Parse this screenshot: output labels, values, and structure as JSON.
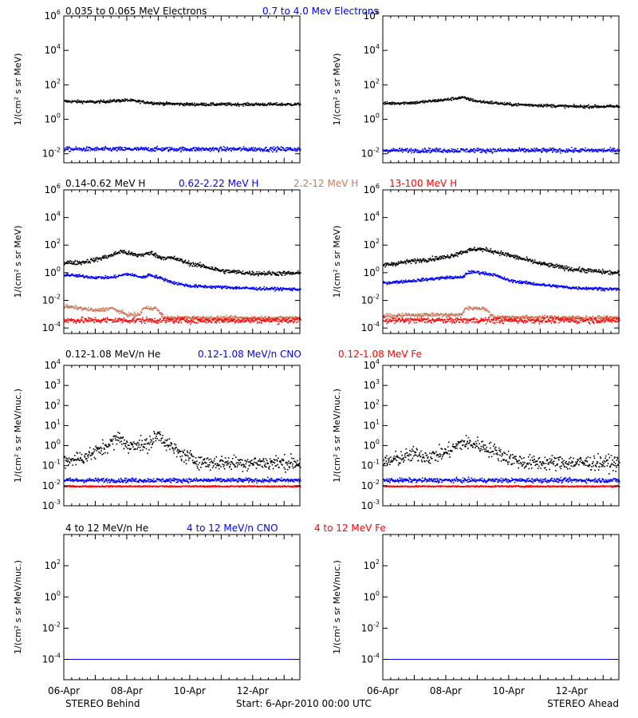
{
  "footer": {
    "left": "STEREO Behind",
    "center": "Start:  6-Apr-2010 00:00 UTC",
    "right": "STEREO Ahead"
  },
  "x_tick_labels": [
    "06-Apr",
    "08-Apr",
    "10-Apr",
    "12-Apr"
  ],
  "chart_data": [
    {
      "type": "scatter",
      "panel": "electrons",
      "legend": [
        {
          "label": "0.035 to 0.065 MeV Electrons",
          "color": "#000000"
        },
        {
          "label": "0.7 to 4.0 Mev Electrons",
          "color": "#0000ff"
        }
      ],
      "ylabel": "1/(cm² s sr MeV)",
      "yscale": "log",
      "ylim": [
        0.003,
        1000000
      ],
      "yticks": [
        {
          "base": "10",
          "exp": "6",
          "v": 1000000
        },
        {
          "base": "10",
          "exp": "4",
          "v": 10000
        },
        {
          "base": "10",
          "exp": "2",
          "v": 100
        },
        {
          "base": "10",
          "exp": "0",
          "v": 1
        },
        {
          "base": "10",
          "exp": "-2",
          "v": 0.01
        }
      ],
      "xlim": [
        0,
        7.5
      ],
      "x_unit": "days since 06-Apr-2010 00:00 UTC",
      "series": [
        {
          "name": "0.035 to 0.065 MeV Electrons",
          "color": "#000000",
          "spread": 0.08,
          "behind": {
            "x": [
              0,
              1,
              2,
              2.5,
              3,
              4,
              5,
              6,
              7.5
            ],
            "y": [
              12,
              11,
              14,
              11,
              9,
              8,
              8,
              8,
              8
            ]
          },
          "ahead": {
            "x": [
              0,
              1,
              2,
              2.5,
              3,
              4,
              5,
              6,
              7.5
            ],
            "y": [
              9,
              10,
              15,
              20,
              12,
              8,
              7,
              6,
              6
            ]
          }
        },
        {
          "name": "0.7 to 4.0 Mev Electrons",
          "color": "#0000ff",
          "spread": 0.12,
          "behind": {
            "x": [
              0,
              7.5
            ],
            "y": [
              0.02,
              0.02
            ]
          },
          "ahead": {
            "x": [
              0,
              7.5
            ],
            "y": [
              0.017,
              0.017
            ]
          }
        }
      ]
    },
    {
      "type": "scatter",
      "panel": "protons",
      "legend": [
        {
          "label": "0.14-0.62 MeV H",
          "color": "#000000"
        },
        {
          "label": "0.62-2.22 MeV H",
          "color": "#0000ff"
        },
        {
          "label": "2.2-12 MeV H",
          "color": "#c87a5a"
        },
        {
          "label": "13-100 MeV H",
          "color": "#ff0000"
        }
      ],
      "ylabel": "1/(cm² s sr MeV)",
      "yscale": "log",
      "ylim": [
        4e-05,
        1000000
      ],
      "yticks": [
        {
          "base": "10",
          "exp": "6",
          "v": 1000000
        },
        {
          "base": "10",
          "exp": "4",
          "v": 10000
        },
        {
          "base": "10",
          "exp": "2",
          "v": 100
        },
        {
          "base": "10",
          "exp": "0",
          "v": 1
        },
        {
          "base": "10",
          "exp": "-2",
          "v": 0.01
        },
        {
          "base": "10",
          "exp": "-4",
          "v": 0.0001
        }
      ],
      "xlim": [
        0,
        7.5
      ],
      "series": [
        {
          "name": "0.14-0.62 MeV H",
          "color": "#000000",
          "spread": 0.15,
          "behind": {
            "x": [
              0,
              0.5,
              1,
              1.5,
              1.8,
              2,
              2.3,
              2.6,
              2.8,
              3,
              3.5,
              4,
              4.5,
              5,
              6,
              7.5
            ],
            "y": [
              6,
              6,
              10,
              20,
              40,
              30,
              20,
              25,
              30,
              15,
              12,
              5,
              3,
              1.5,
              1,
              1
            ]
          },
          "ahead": {
            "x": [
              0,
              1,
              2,
              2.6,
              3,
              3.5,
              4,
              5,
              6,
              7.5
            ],
            "y": [
              4,
              8,
              15,
              40,
              60,
              40,
              20,
              5,
              2,
              1
            ]
          }
        },
        {
          "name": "0.62-2.22 MeV H",
          "color": "#0000ff",
          "spread": 0.1,
          "behind": {
            "x": [
              0,
              1,
              1.5,
              2,
              2.5,
              2.7,
              3,
              3.5,
              4,
              5,
              6,
              7.5
            ],
            "y": [
              0.8,
              0.5,
              0.5,
              0.9,
              0.5,
              0.8,
              0.5,
              0.2,
              0.12,
              0.1,
              0.08,
              0.07
            ]
          },
          "ahead": {
            "x": [
              0,
              1,
              2,
              2.5,
              2.7,
              3,
              3.5,
              4,
              5,
              6,
              7.5
            ],
            "y": [
              0.2,
              0.3,
              0.5,
              0.5,
              1.2,
              1.2,
              0.8,
              0.3,
              0.15,
              0.09,
              0.07
            ]
          }
        },
        {
          "name": "2.2-12 MeV H",
          "color": "#c87a5a",
          "spread": 0.12,
          "behind": {
            "x": [
              0,
              0.5,
              1,
              1.5,
              2,
              2.4,
              2.5,
              2.9,
              3.2,
              7.5
            ],
            "y": [
              0.004,
              0.003,
              0.002,
              0.003,
              0.001,
              0.001,
              0.003,
              0.003,
              0.0006,
              0.0006
            ]
          },
          "ahead": {
            "x": [
              0,
              1,
              2,
              2.5,
              2.6,
              3.2,
              3.5,
              7.5
            ],
            "y": [
              0.0008,
              0.001,
              0.001,
              0.001,
              0.003,
              0.003,
              0.0007,
              0.0006
            ]
          }
        },
        {
          "name": "13-100 MeV H",
          "color": "#ff0000",
          "spread": 0.2,
          "behind": {
            "x": [
              0,
              7.5
            ],
            "y": [
              0.0004,
              0.0004
            ]
          },
          "ahead": {
            "x": [
              0,
              7.5
            ],
            "y": [
              0.0004,
              0.0004
            ]
          }
        }
      ]
    },
    {
      "type": "scatter",
      "panel": "ions-low",
      "legend": [
        {
          "label": "0.12-1.08 MeV/n He",
          "color": "#000000"
        },
        {
          "label": "0.12-1.08 MeV/n CNO",
          "color": "#0000ff"
        },
        {
          "label": "0.12-1.08 MeV Fe",
          "color": "#ff0000"
        }
      ],
      "ylabel": "1/(cm² s sr MeV/nuc.)",
      "yscale": "log",
      "ylim": [
        0.001,
        10000
      ],
      "yticks": [
        {
          "base": "10",
          "exp": "4",
          "v": 10000
        },
        {
          "base": "10",
          "exp": "3",
          "v": 1000
        },
        {
          "base": "10",
          "exp": "2",
          "v": 100
        },
        {
          "base": "10",
          "exp": "1",
          "v": 10
        },
        {
          "base": "10",
          "exp": "0",
          "v": 1
        },
        {
          "base": "10",
          "exp": "-1",
          "v": 0.1
        },
        {
          "base": "10",
          "exp": "-2",
          "v": 0.01
        },
        {
          "base": "10",
          "exp": "-3",
          "v": 0.001
        }
      ],
      "xlim": [
        0,
        7.5
      ],
      "series": [
        {
          "name": "0.12-1.08 MeV/n He",
          "color": "#000000",
          "spread": 0.35,
          "behind": {
            "x": [
              0,
              0.5,
              1,
              1.5,
              1.8,
              2,
              2.3,
              2.6,
              3,
              3.3,
              3.6,
              4,
              4.5
            ],
            "y": [
              0.2,
              0.25,
              0.5,
              1.5,
              3,
              0.8,
              1.5,
              1,
              4,
              1.2,
              0.5,
              0.25,
              0.15
            ]
          },
          "ahead": {
            "x": [
              0,
              0.5,
              1,
              1.5,
              2,
              2.5,
              3,
              3.5,
              4,
              4.5
            ],
            "y": [
              0.15,
              0.25,
              0.4,
              0.3,
              0.5,
              1.5,
              1.2,
              0.6,
              0.25,
              0.15
            ]
          }
        },
        {
          "name": "0.12-1.08 MeV/n CNO",
          "color": "#0000ff",
          "spread": 0.1,
          "behind": {
            "x": [
              0,
              7.5
            ],
            "y": [
              0.02,
              0.02
            ]
          },
          "ahead": {
            "x": [
              0,
              7.5
            ],
            "y": [
              0.02,
              0.02
            ]
          }
        },
        {
          "name": "0.12-1.08 MeV Fe",
          "color": "#ff0000",
          "spread": 0.03,
          "behind": {
            "x": [
              0,
              7.5
            ],
            "y": [
              0.01,
              0.01
            ]
          },
          "ahead": {
            "x": [
              0,
              7.5
            ],
            "y": [
              0.01,
              0.01
            ]
          }
        }
      ]
    },
    {
      "type": "scatter",
      "panel": "ions-high",
      "legend": [
        {
          "label": "4 to 12 MeV/n He",
          "color": "#000000"
        },
        {
          "label": "4 to 12 MeV/n CNO",
          "color": "#0000ff"
        },
        {
          "label": "4 to 12 MeV Fe",
          "color": "#ff0000"
        }
      ],
      "ylabel": "1/(cm² s sr MeV/nuc.)",
      "yscale": "log",
      "ylim": [
        5e-06,
        10000
      ],
      "yticks": [
        {
          "base": "10",
          "exp": "2",
          "v": 100
        },
        {
          "base": "10",
          "exp": "0",
          "v": 1
        },
        {
          "base": "10",
          "exp": "-2",
          "v": 0.01
        },
        {
          "base": "10",
          "exp": "-4",
          "v": 0.0001
        }
      ],
      "xlim": [
        0,
        7.5
      ],
      "series": [
        {
          "name": "4 to 12 MeV/n He",
          "color": "#000000",
          "spread": 0,
          "behind": {
            "x": [
              0,
              7.5
            ],
            "y": [
              0.0001,
              0.0001
            ]
          },
          "ahead": {
            "x": [
              0,
              7.5
            ],
            "y": [
              0.0001,
              0.0001
            ]
          }
        },
        {
          "name": "4 to 12 MeV/n CNO",
          "color": "#0000ff",
          "spread": 0,
          "behind": {
            "x": [
              0,
              7.5
            ],
            "y": [
              0.0001,
              0.0001
            ]
          },
          "ahead": {
            "x": [
              0,
              7.5
            ],
            "y": [
              0.0001,
              0.0001
            ]
          }
        }
      ]
    }
  ]
}
